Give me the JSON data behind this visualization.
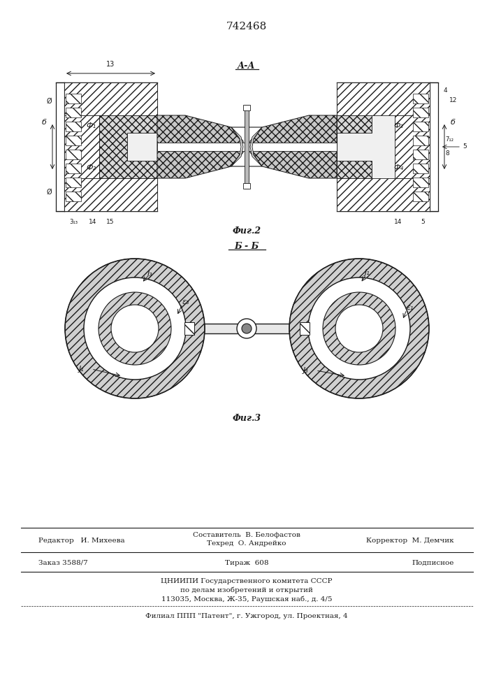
{
  "patent_number": "742468",
  "fig2_label": "А-А",
  "fig2_caption": "Фиг.2",
  "fig3_label": "Б - Б",
  "fig3_caption": "Фиг.3",
  "bg_color": "#ffffff",
  "line_color": "#1a1a1a",
  "footer_editor": "Редактор   И. Михеева",
  "footer_composer": "Составитель  В. Белофастов",
  "footer_tech": "Техред  О. Андрейко",
  "footer_corrector": "Корректор  М. Демчик",
  "footer_order": "Заказ 3588/7",
  "footer_tirazh": "Тираж  608",
  "footer_podp": "Подписное",
  "footer_cniippi1": "ЦНИИПИ Государственного комитета СССР",
  "footer_cniippi2": "по делам изобретений и открытий",
  "footer_cniippi3": "113035, Москва, Ж-35, Раушская наб., д. 4/5",
  "footer_patent": "Филиал ППП \"Патент\", г. Ужгород, ул. Проектная, 4"
}
